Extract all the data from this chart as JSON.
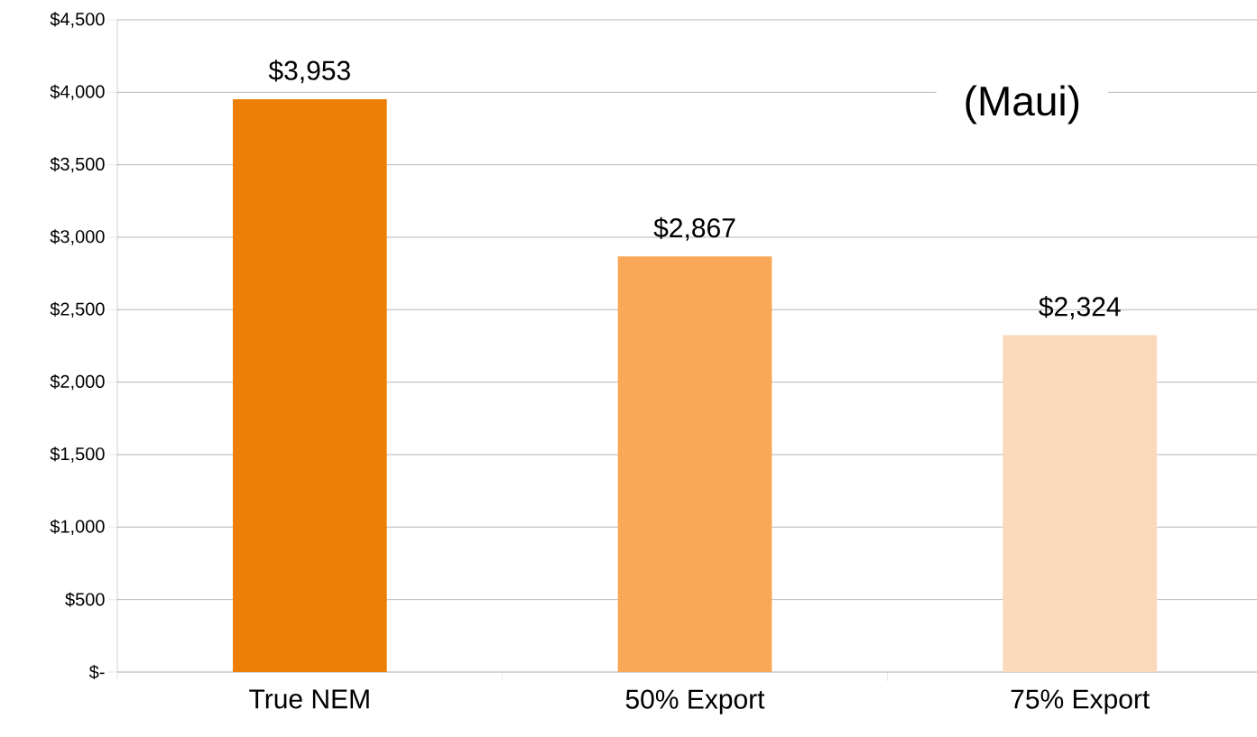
{
  "chart_data": {
    "type": "bar",
    "title": "(Maui)",
    "categories": [
      "True NEM",
      "50% Export",
      "75% Export"
    ],
    "values": [
      3953,
      2867,
      2324
    ],
    "colors": [
      "#ec8006",
      "#f8a857",
      "#fadabb"
    ],
    "value_labels": [
      "$3,953",
      "$2,867",
      "$2,324"
    ],
    "ylim": [
      0,
      4500
    ],
    "yticks": [
      {
        "value": 0,
        "label": "$-"
      },
      {
        "value": 500,
        "label": "$500"
      },
      {
        "value": 1000,
        "label": "$1,000"
      },
      {
        "value": 1500,
        "label": "$1,500"
      },
      {
        "value": 2000,
        "label": "$2,000"
      },
      {
        "value": 2500,
        "label": "$2,500"
      },
      {
        "value": 3000,
        "label": "$3,000"
      },
      {
        "value": 3500,
        "label": "$3,500"
      },
      {
        "value": 4000,
        "label": "$4,000"
      },
      {
        "value": 4500,
        "label": "$4,500"
      }
    ],
    "grid": "y"
  }
}
